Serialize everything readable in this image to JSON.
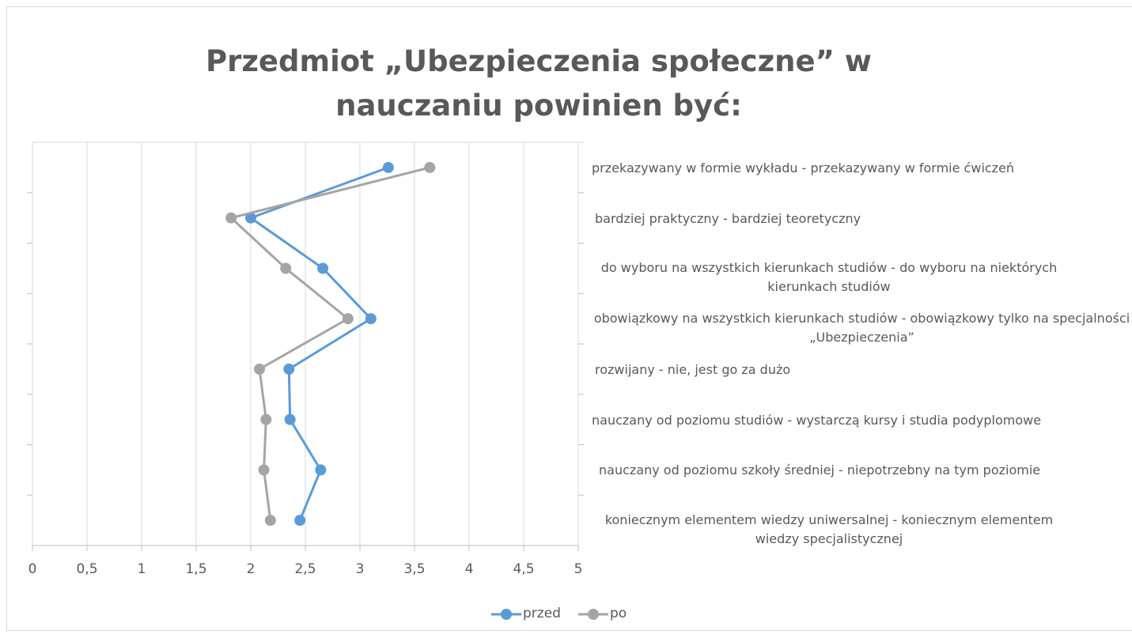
{
  "chart_data": {
    "type": "line",
    "orientation": "horizontal",
    "title": "Przedmiot „Ubezpieczenia społeczne” w nauczaniu powinien być:",
    "categories": [
      "przekazywany w formie wykładu - przekazywany w formie ćwiczeń",
      "bardziej praktyczny - bardziej teoretyczny",
      "do wyboru na wszystkich kierunkach studiów - do wyboru na niektórych kierunkach studiów",
      "obowiązkowy na wszystkich kierunkach studiów - obowiązkowy tylko na specjalności „Ubezpieczenia”",
      "rozwijany - nie, jest go za dużo",
      "nauczany od poziomu studiów - wystarczą kursy i studia podyplomowe",
      "nauczany od poziomu szkoły średniej - niepotrzebny na tym poziomie",
      "koniecznym elementem wiedzy uniwersalnej - koniecznym elementem wiedzy specjalistycznej"
    ],
    "series": [
      {
        "name": "przed",
        "color": "#5b9bd5",
        "values": [
          3.26,
          2.0,
          2.66,
          3.1,
          2.35,
          2.36,
          2.64,
          2.45
        ]
      },
      {
        "name": "po",
        "color": "#a5a5a5",
        "values": [
          3.64,
          1.82,
          2.32,
          2.89,
          2.08,
          2.14,
          2.12,
          2.18
        ]
      }
    ],
    "xlim": [
      0,
      5
    ],
    "xticks": [
      0,
      {
        "value": 0.5,
        "label": "0,5"
      },
      1,
      {
        "value": 1.5,
        "label": "1,5"
      },
      2,
      {
        "value": 2.5,
        "label": "2,5"
      },
      3,
      {
        "value": 3.5,
        "label": "3,5"
      },
      4,
      {
        "value": 4.5,
        "label": "4,5"
      },
      5
    ],
    "grid": true,
    "legend": "bottom"
  }
}
